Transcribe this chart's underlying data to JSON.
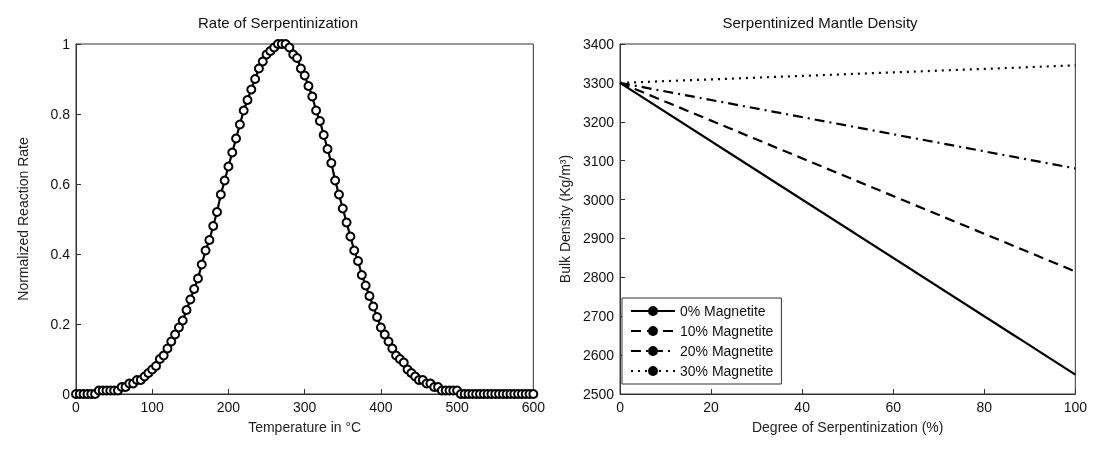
{
  "chart_data": [
    {
      "type": "line",
      "title": "Rate of Serpentinization",
      "xlabel": "Temperature in °C",
      "ylabel": "Normalized Reaction Rate",
      "xlim": [
        0,
        600
      ],
      "xticks": [
        0,
        100,
        200,
        300,
        400,
        500,
        600
      ],
      "ylim": [
        0,
        1
      ],
      "yticks": [
        0,
        0.2,
        0.4,
        0.6,
        0.8,
        1
      ],
      "grid": false,
      "legend": false,
      "marker": "circle",
      "line_style": "solid",
      "x": [
        0,
        5,
        10,
        15,
        20,
        25,
        30,
        35,
        40,
        45,
        50,
        55,
        60,
        65,
        70,
        75,
        80,
        85,
        90,
        95,
        100,
        105,
        110,
        115,
        120,
        125,
        130,
        135,
        140,
        145,
        150,
        155,
        160,
        165,
        170,
        175,
        180,
        185,
        190,
        195,
        200,
        205,
        210,
        215,
        220,
        225,
        230,
        235,
        240,
        245,
        250,
        255,
        260,
        265,
        270,
        275,
        280,
        285,
        290,
        295,
        300,
        305,
        310,
        315,
        320,
        325,
        330,
        335,
        340,
        345,
        350,
        355,
        360,
        365,
        370,
        375,
        380,
        385,
        390,
        395,
        400,
        405,
        410,
        415,
        420,
        425,
        430,
        435,
        440,
        445,
        450,
        455,
        460,
        465,
        470,
        475,
        480,
        485,
        490,
        495,
        500,
        505,
        510,
        515,
        520,
        525,
        530,
        535,
        540,
        545,
        550,
        555,
        560,
        565,
        570,
        575,
        580,
        585,
        590,
        595,
        600
      ],
      "series": [
        {
          "color": "#000000",
          "values": [
            0,
            0,
            0,
            0,
            0,
            0,
            0.01,
            0.01,
            0.01,
            0.01,
            0.01,
            0.01,
            0.02,
            0.02,
            0.03,
            0.03,
            0.04,
            0.04,
            0.05,
            0.06,
            0.07,
            0.08,
            0.1,
            0.11,
            0.13,
            0.15,
            0.17,
            0.19,
            0.21,
            0.24,
            0.27,
            0.3,
            0.33,
            0.37,
            0.41,
            0.44,
            0.48,
            0.52,
            0.57,
            0.61,
            0.65,
            0.69,
            0.73,
            0.77,
            0.81,
            0.84,
            0.87,
            0.9,
            0.93,
            0.95,
            0.97,
            0.98,
            0.99,
            1.0,
            1.0,
            1.0,
            0.99,
            0.97,
            0.96,
            0.93,
            0.91,
            0.88,
            0.85,
            0.81,
            0.78,
            0.74,
            0.7,
            0.66,
            0.61,
            0.57,
            0.53,
            0.49,
            0.45,
            0.41,
            0.38,
            0.34,
            0.31,
            0.28,
            0.25,
            0.22,
            0.19,
            0.17,
            0.15,
            0.13,
            0.11,
            0.1,
            0.09,
            0.07,
            0.06,
            0.05,
            0.04,
            0.04,
            0.03,
            0.03,
            0.02,
            0.02,
            0.01,
            0.01,
            0.01,
            0.01,
            0.01,
            0,
            0,
            0,
            0,
            0,
            0,
            0,
            0,
            0,
            0,
            0,
            0,
            0,
            0,
            0,
            0,
            0,
            0,
            0,
            0
          ]
        }
      ]
    },
    {
      "type": "line",
      "title": "Serpentinized Mantle Density",
      "xlabel": "Degree of Serpentinization (%)",
      "ylabel": "Bulk Density (Kg/m³)",
      "xlim": [
        0,
        100
      ],
      "xticks": [
        0,
        20,
        40,
        60,
        80,
        100
      ],
      "ylim": [
        2500,
        3400
      ],
      "yticks": [
        2500,
        2600,
        2700,
        2800,
        2900,
        3000,
        3100,
        3200,
        3300,
        3400
      ],
      "grid": false,
      "legend": "bottom left",
      "marker": "none",
      "x": [
        0,
        100
      ],
      "series": [
        {
          "name": "0% Magnetite",
          "color": "#000000",
          "line_style": "solid",
          "values": [
            3300,
            2550
          ]
        },
        {
          "name": "10% Magnetite",
          "color": "#000000",
          "line_style": "dashed",
          "values": [
            3300,
            2815
          ]
        },
        {
          "name": "20% Magnetite",
          "color": "#000000",
          "line_style": "dashdot",
          "values": [
            3300,
            3080
          ]
        },
        {
          "name": "30% Magnetite",
          "color": "#000000",
          "line_style": "dotted",
          "values": [
            3300,
            3345
          ]
        }
      ]
    }
  ]
}
